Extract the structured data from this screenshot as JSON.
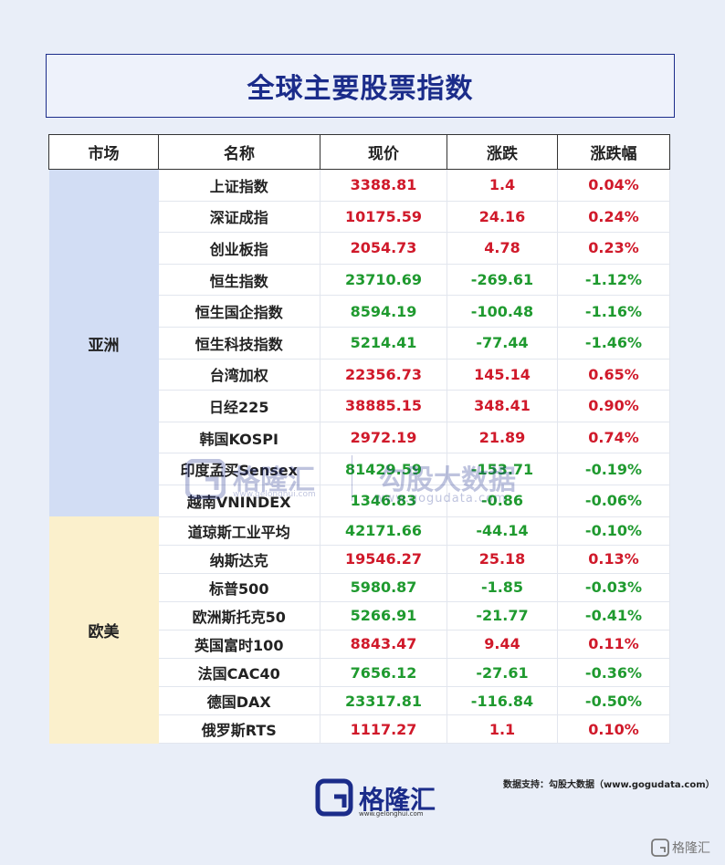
{
  "title": "全球主要股票指数",
  "headers": [
    "市场",
    "名称",
    "现价",
    "涨跌",
    "涨跌幅"
  ],
  "groups": [
    {
      "region": "亚洲",
      "rows": [
        {
          "name": "上证指数",
          "price": "3388.81",
          "change": "1.4",
          "pct": "0.04%",
          "dir": "up"
        },
        {
          "name": "深证成指",
          "price": "10175.59",
          "change": "24.16",
          "pct": "0.24%",
          "dir": "up"
        },
        {
          "name": "创业板指",
          "price": "2054.73",
          "change": "4.78",
          "pct": "0.23%",
          "dir": "up"
        },
        {
          "name": "恒生指数",
          "price": "23710.69",
          "change": "-269.61",
          "pct": "-1.12%",
          "dir": "down"
        },
        {
          "name": "恒生国企指数",
          "price": "8594.19",
          "change": "-100.48",
          "pct": "-1.16%",
          "dir": "down"
        },
        {
          "name": "恒生科技指数",
          "price": "5214.41",
          "change": "-77.44",
          "pct": "-1.46%",
          "dir": "down"
        },
        {
          "name": "台湾加权",
          "price": "22356.73",
          "change": "145.14",
          "pct": "0.65%",
          "dir": "up"
        },
        {
          "name": "日经225",
          "price": "38885.15",
          "change": "348.41",
          "pct": "0.90%",
          "dir": "up"
        },
        {
          "name": "韩国KOSPI",
          "price": "2972.19",
          "change": "21.89",
          "pct": "0.74%",
          "dir": "up"
        },
        {
          "name": "印度孟买Sensex",
          "price": "81429.59",
          "change": "-153.71",
          "pct": "-0.19%",
          "dir": "down"
        },
        {
          "name": "越南VNINDEX",
          "price": "1346.83",
          "change": "-0.86",
          "pct": "-0.06%",
          "dir": "down"
        }
      ]
    },
    {
      "region": "欧美",
      "rows": [
        {
          "name": "道琼斯工业平均",
          "price": "42171.66",
          "change": "-44.14",
          "pct": "-0.10%",
          "dir": "down"
        },
        {
          "name": "纳斯达克",
          "price": "19546.27",
          "change": "25.18",
          "pct": "0.13%",
          "dir": "up"
        },
        {
          "name": "标普500",
          "price": "5980.87",
          "change": "-1.85",
          "pct": "-0.03%",
          "dir": "down"
        },
        {
          "name": "欧洲斯托克50",
          "price": "5266.91",
          "change": "-21.77",
          "pct": "-0.41%",
          "dir": "down"
        },
        {
          "name": "英国富时100",
          "price": "8843.47",
          "change": "9.44",
          "pct": "0.11%",
          "dir": "up"
        },
        {
          "name": "法国CAC40",
          "price": "7656.12",
          "change": "-27.61",
          "pct": "-0.36%",
          "dir": "down"
        },
        {
          "name": "德国DAX",
          "price": "23317.81",
          "change": "-116.84",
          "pct": "-0.50%",
          "dir": "down"
        },
        {
          "name": "俄罗斯RTS",
          "price": "1117.27",
          "change": "1.1",
          "pct": "0.10%",
          "dir": "up"
        }
      ]
    }
  ],
  "watermark": {
    "brand": "格隆汇",
    "brand_url": "www.gelonghui.com",
    "source": "勾股大数据",
    "source_url": "www.gogudata.com"
  },
  "footer": {
    "source_note": "数据支持：勾股大数据（www.gogudata.com）",
    "logo_text": "格隆汇",
    "logo_url": "www.gelonghui.com",
    "corner_mark": "格隆汇"
  },
  "icons": {
    "logo": "gelonghui-logo-icon",
    "corner": "gelonghui-corner-icon"
  },
  "colors": {
    "up": "#d0192a",
    "down": "#1f9a2f",
    "title": "#1b2c8a",
    "asia_bg": "#d2ddf4",
    "euam_bg": "#fbf0cc"
  }
}
